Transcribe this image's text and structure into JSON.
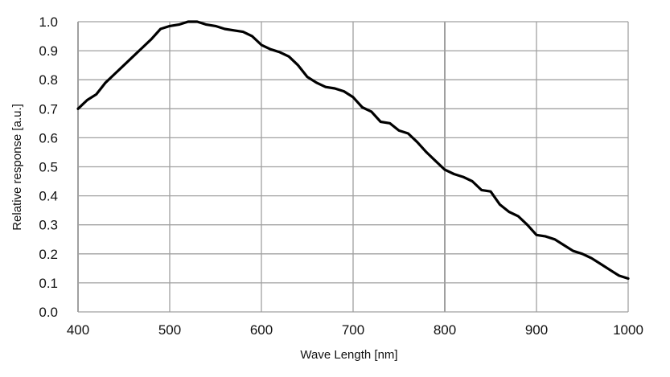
{
  "chart_data": {
    "type": "line",
    "title": "",
    "xlabel": "Wave Length [nm]",
    "ylabel": "Relative response [a.u.]",
    "xlim": [
      400,
      1000
    ],
    "ylim": [
      0.0,
      1.0
    ],
    "grid": true,
    "xticks": [
      "400",
      "500",
      "600",
      "700",
      "800",
      "900",
      "1000"
    ],
    "yticks": [
      "0.0",
      "0.1",
      "0.2",
      "0.3",
      "0.4",
      "0.5",
      "0.6",
      "0.7",
      "0.8",
      "0.9",
      "1.0"
    ],
    "line_color": "#000000",
    "grid_color": "#a0a0a0",
    "series": [
      {
        "name": "Relative response",
        "x": [
          400,
          410,
          420,
          430,
          440,
          450,
          460,
          470,
          480,
          490,
          500,
          510,
          520,
          530,
          540,
          550,
          560,
          570,
          580,
          590,
          600,
          610,
          620,
          630,
          640,
          650,
          660,
          670,
          680,
          690,
          700,
          710,
          720,
          730,
          740,
          750,
          760,
          770,
          780,
          790,
          800,
          810,
          820,
          830,
          840,
          850,
          860,
          870,
          880,
          890,
          900,
          910,
          920,
          930,
          940,
          950,
          960,
          970,
          980,
          990,
          1000
        ],
        "y": [
          0.7,
          0.73,
          0.75,
          0.79,
          0.82,
          0.85,
          0.88,
          0.91,
          0.94,
          0.975,
          0.985,
          0.99,
          1.0,
          1.0,
          0.99,
          0.985,
          0.975,
          0.97,
          0.965,
          0.95,
          0.92,
          0.905,
          0.895,
          0.88,
          0.85,
          0.81,
          0.79,
          0.775,
          0.77,
          0.76,
          0.74,
          0.705,
          0.69,
          0.655,
          0.65,
          0.625,
          0.615,
          0.585,
          0.55,
          0.52,
          0.49,
          0.475,
          0.465,
          0.45,
          0.42,
          0.415,
          0.37,
          0.345,
          0.33,
          0.3,
          0.265,
          0.26,
          0.25,
          0.23,
          0.21,
          0.2,
          0.185,
          0.165,
          0.145,
          0.125,
          0.115
        ]
      }
    ]
  }
}
